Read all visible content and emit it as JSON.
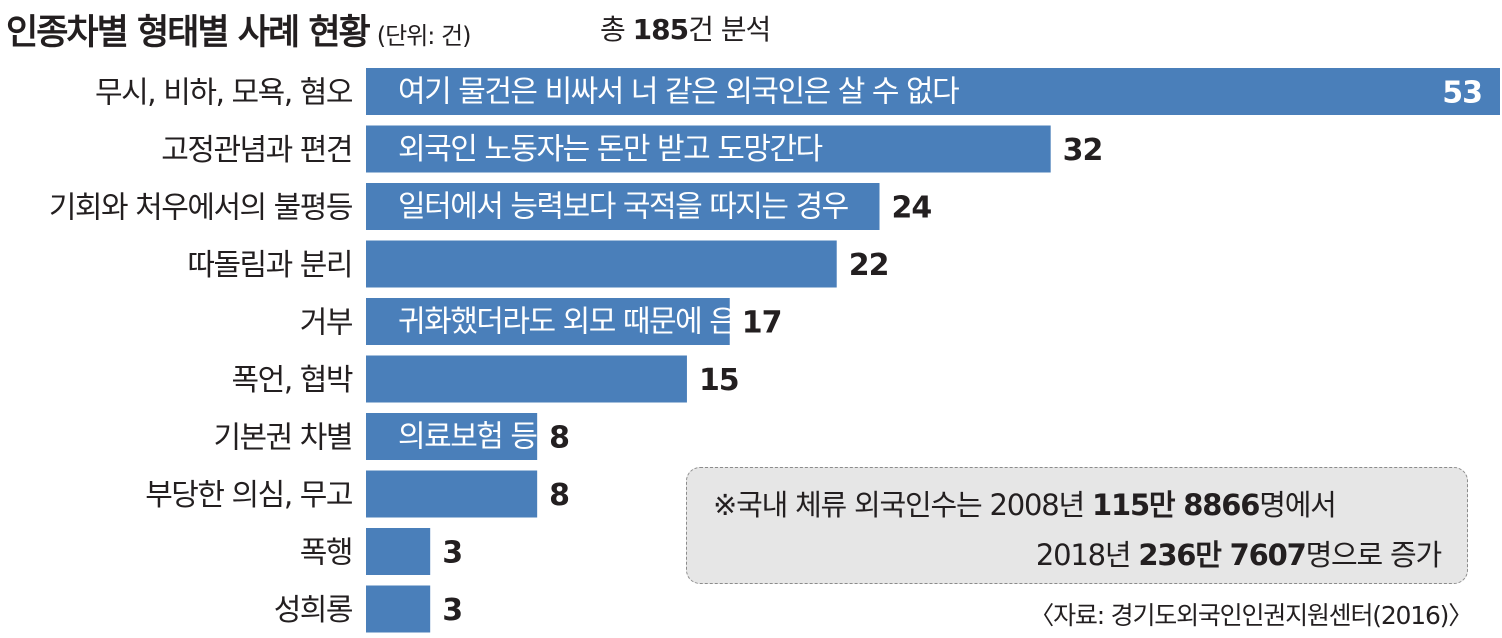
{
  "header": {
    "title": "인종차별 형태별 사례 현황",
    "unit": "(단위: 건)",
    "total_prefix": "총 ",
    "total_value": "185",
    "total_suffix": "건 분석"
  },
  "chart_data": {
    "type": "bar",
    "orientation": "horizontal",
    "categories": [
      "무시, 비하, 모욕, 혐오",
      "고정관념과 편견",
      "기회와 처우에서의 불평등",
      "따돌림과 분리",
      "거부",
      "폭언, 협박",
      "기본권 차별",
      "부당한 의심, 무고",
      "폭행",
      "성희롱"
    ],
    "values": [
      53,
      32,
      24,
      22,
      17,
      15,
      8,
      8,
      3,
      3
    ],
    "examples": [
      "여기 물건은 비싸서 너 같은 외국인은 살 수 없다",
      "외국인 노동자는 돈만 받고 도망간다",
      "일터에서 능력보다 국적을 따지는 경우",
      "",
      "귀화했더라도 외모 때문에 은행 대출을 받지 못하는 경우",
      "",
      "의료보험 등",
      "",
      "",
      ""
    ],
    "bar_color": "#4a7fba",
    "xlim": [
      0,
      53
    ]
  },
  "note": {
    "line1_prefix": "※국내 체류 외국인수는 2008년 ",
    "line1_value": "115만 8866",
    "line1_suffix": "명에서",
    "line2_prefix": "2018년 ",
    "line2_value": "236만 7607",
    "line2_suffix": "명으로 증가"
  },
  "source": "〈자료: 경기도외국인인권지원센터(2016)〉"
}
